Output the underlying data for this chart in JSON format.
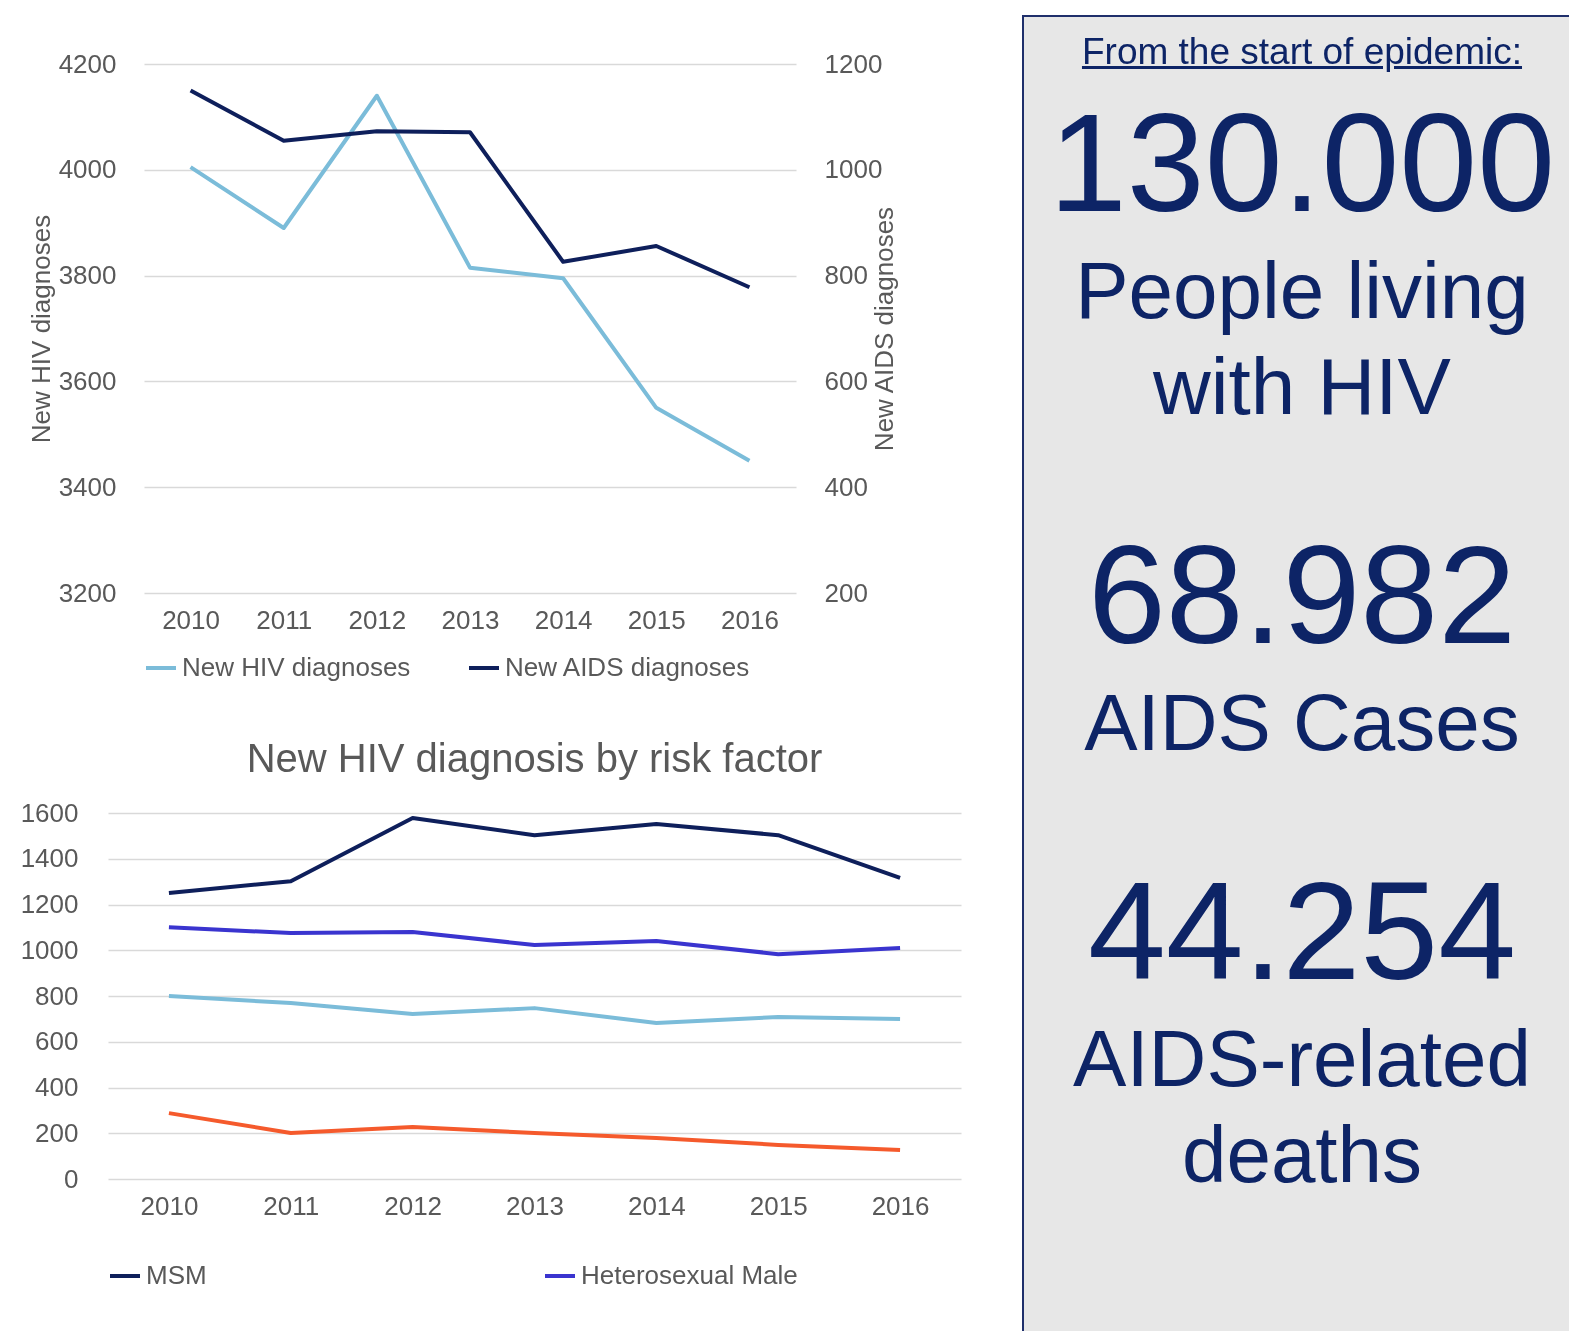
{
  "chart_data": [
    {
      "type": "line",
      "ylabel": "New HIV diagnoses",
      "y2label": "New AIDS diagnoses",
      "categories": [
        "2010",
        "2011",
        "2012",
        "2013",
        "2014",
        "2015",
        "2016"
      ],
      "series": [
        {
          "name": "New HIV diagnoses",
          "color": "#7bbcd9",
          "values": [
            4005,
            3890,
            4140,
            3815,
            3795,
            3550,
            3450
          ]
        },
        {
          "name": "New AIDS diagnoses",
          "color": "#0e1f5b",
          "axis": "y2",
          "values": [
            1150,
            1055,
            1073,
            1071,
            826,
            856,
            778
          ]
        }
      ],
      "ylim": [
        3200,
        4200
      ],
      "yticks": [
        3200,
        3400,
        3600,
        3800,
        4000,
        4200
      ],
      "y2lim": [
        200,
        1200
      ],
      "y2ticks": [
        200,
        400,
        600,
        800,
        1000,
        1200
      ],
      "grid": "y",
      "legend": "bottom"
    },
    {
      "type": "line",
      "title": "New HIV diagnosis by risk factor",
      "categories": [
        "2010",
        "2011",
        "2012",
        "2013",
        "2014",
        "2015",
        "2016"
      ],
      "series": [
        {
          "name": "MSM",
          "color": "#0e1f5b",
          "values": [
            1250,
            1302,
            1578,
            1503,
            1552,
            1503,
            1316
          ]
        },
        {
          "name": "Heterosexual Male",
          "color": "#3a34cf",
          "values": [
            1101,
            1075,
            1080,
            1023,
            1040,
            983,
            1010
          ]
        },
        {
          "color": "#7bbcd9",
          "values": [
            800,
            769,
            721,
            747,
            682,
            708,
            699
          ]
        },
        {
          "color": "#f55a2c",
          "values": [
            288,
            201,
            227,
            201,
            179,
            149,
            127
          ]
        }
      ],
      "ylim": [
        0,
        1600
      ],
      "yticks": [
        0,
        200,
        400,
        600,
        800,
        1000,
        1200,
        1400,
        1600
      ],
      "grid": "y",
      "legend": "bottom"
    },
    {
      "type": "other",
      "title": "From the start of epidemic:",
      "annotations": [
        "130.000",
        "People living with HIV",
        "68.982",
        "AIDS Cases",
        "44.254",
        "AIDS-related deaths"
      ]
    }
  ]
}
